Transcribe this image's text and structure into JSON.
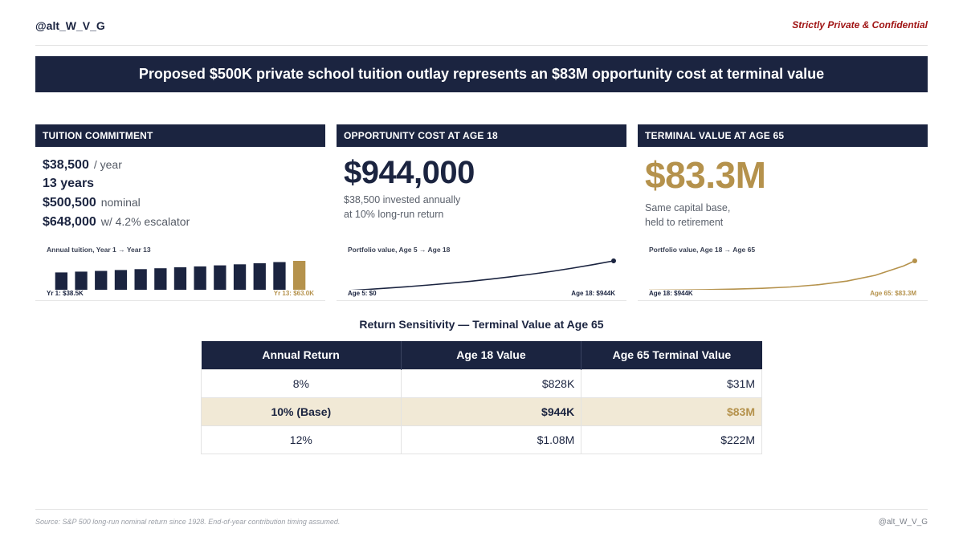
{
  "header": {
    "handle": "@alt_W_V_G",
    "confidential": "Strictly Private & Confidential"
  },
  "banner": {
    "title": "Proposed $500K private school tuition outlay represents an $83M opportunity cost at terminal value"
  },
  "panels": {
    "tuition": {
      "heading": "TUITION COMMITMENT",
      "rows": [
        {
          "big": "$38,500",
          "small": "/ year"
        },
        {
          "big": "13 years",
          "small": ""
        },
        {
          "big": "$500,500",
          "small": "nominal"
        },
        {
          "big": "$648,000",
          "small": "w/ 4.2% escalator"
        }
      ],
      "chart_title": "Annual tuition, Year 1 → Year 13",
      "label_left": "Yr 1: $38.5K",
      "label_right": "Yr 13: $63.0K"
    },
    "opportunity": {
      "heading": "OPPORTUNITY COST AT AGE 18",
      "value": "$944,000",
      "desc_line1": "$38,500 invested annually",
      "desc_line2": "at 10% long-run return",
      "chart_title": "Portfolio value, Age 5 → Age 18",
      "label_left": "Age 5: $0",
      "label_right": "Age 18: $944K"
    },
    "terminal": {
      "heading": "TERMINAL VALUE AT AGE 65",
      "value": "$83.3M",
      "desc_line1": "Same capital base,",
      "desc_line2": "held to retirement",
      "chart_title": "Portfolio value, Age 18 → Age 65",
      "label_left": "Age 18: $944K",
      "label_right": "Age 65: $83.3M"
    }
  },
  "chart_data": [
    {
      "type": "bar",
      "categories": [
        "Yr 1",
        "Yr 2",
        "Yr 3",
        "Yr 4",
        "Yr 5",
        "Yr 6",
        "Yr 7",
        "Yr 8",
        "Yr 9",
        "Yr 10",
        "Yr 11",
        "Yr 12",
        "Yr 13"
      ],
      "values": [
        38.5,
        40.1,
        41.8,
        43.6,
        45.4,
        47.3,
        49.3,
        51.3,
        53.5,
        55.7,
        58.1,
        60.5,
        63.0
      ],
      "title": "Annual tuition, Year 1 → Year 13",
      "highlight_index": 12,
      "colors": {
        "default": "#1b2440",
        "highlight": "#b5924c"
      }
    },
    {
      "type": "line",
      "x": [
        5,
        6,
        7,
        8,
        9,
        10,
        11,
        12,
        13,
        14,
        15,
        16,
        17,
        18
      ],
      "values": [
        0,
        38.5,
        80.9,
        127.4,
        178.7,
        235.0,
        297.0,
        365.3,
        440.3,
        522.8,
        613.6,
        713.4,
        823.3,
        944.0
      ],
      "title": "Portfolio value, Age 5 → Age 18",
      "color": "#1b2440"
    },
    {
      "type": "line",
      "x": [
        18,
        23,
        28,
        33,
        38,
        43,
        48,
        53,
        58,
        63,
        65
      ],
      "values": [
        0.944,
        1.52,
        2.45,
        3.95,
        6.36,
        10.2,
        16.5,
        26.5,
        42.7,
        68.8,
        83.3
      ],
      "title": "Portfolio value, Age 18 → Age 65",
      "color": "#b5924c"
    }
  ],
  "sensitivity": {
    "title": "Return Sensitivity — Terminal Value at Age 65",
    "columns": [
      "Annual Return",
      "Age 18 Value",
      "Age 65 Terminal Value"
    ],
    "rows": [
      [
        "8%",
        "$828K",
        "$31M"
      ],
      [
        "10% (Base)",
        "$944K",
        "$83M"
      ],
      [
        "12%",
        "$1.08M",
        "$222M"
      ]
    ]
  },
  "footer": {
    "source": "Source: S&P 500 long-run nominal return since 1928. End-of-year contribution timing assumed.",
    "handle": "@alt_W_V_G"
  }
}
